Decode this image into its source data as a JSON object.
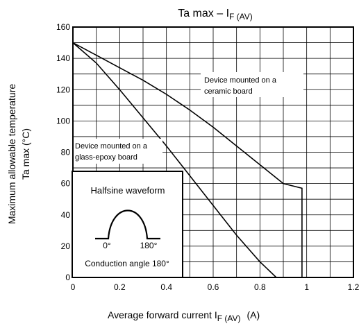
{
  "chart_data": {
    "type": "line",
    "title": {
      "main": "Ta max – I",
      "subscript": "F (AV)"
    },
    "xlabel": {
      "main": "Average forward current   I",
      "subscript": "F (AV)",
      "unit": "(A)"
    },
    "ylabel": {
      "line1": "Maximum allowable temperature",
      "line2": "Ta max    (°C)"
    },
    "xlim": [
      0,
      1.2
    ],
    "ylim": [
      0,
      160
    ],
    "x_ticks": [
      "0",
      "0.2",
      "0.4",
      "0.6",
      "0.8",
      "1",
      "1.2"
    ],
    "y_ticks": [
      "0",
      "20",
      "40",
      "60",
      "80",
      "100",
      "120",
      "140",
      "160"
    ],
    "x_tick_values": [
      0,
      0.2,
      0.4,
      0.6,
      0.8,
      1.0,
      1.2
    ],
    "y_tick_values": [
      0,
      20,
      40,
      60,
      80,
      100,
      120,
      140,
      160
    ],
    "grid": true,
    "series": [
      {
        "points": [
          [
            0,
            150
          ],
          [
            0.1,
            142
          ],
          [
            0.2,
            134
          ],
          [
            0.3,
            126
          ],
          [
            0.4,
            117
          ],
          [
            0.5,
            107
          ],
          [
            0.6,
            96
          ],
          [
            0.7,
            84
          ],
          [
            0.8,
            72
          ],
          [
            0.9,
            60
          ],
          [
            0.98,
            57
          ],
          [
            0.98,
            0
          ]
        ]
      },
      {
        "points": [
          [
            0,
            150
          ],
          [
            0.1,
            137
          ],
          [
            0.2,
            120
          ],
          [
            0.3,
            102
          ],
          [
            0.4,
            84
          ],
          [
            0.5,
            65
          ],
          [
            0.6,
            46
          ],
          [
            0.7,
            27
          ],
          [
            0.8,
            10
          ],
          [
            0.87,
            0
          ]
        ]
      }
    ],
    "annotations": {
      "ceramic": [
        "Device mounted on a",
        "ceramic board"
      ],
      "glass": [
        "Device mounted on a",
        "glass-epoxy board"
      ]
    },
    "inset": {
      "title": "Halfsine waveform",
      "label_start": "0°",
      "label_end": "180°",
      "caption": "Conduction angle 180°"
    }
  }
}
